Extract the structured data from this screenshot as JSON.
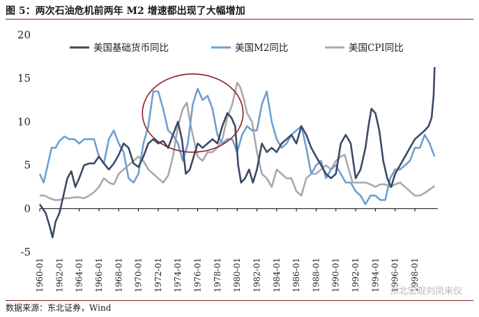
{
  "header": {
    "title": "图 5：两次石油危机前两年 M2 增速都出现了大幅增加"
  },
  "footer": {
    "source": "数据来源：东北证券，Wind"
  },
  "watermark": {
    "text": "东北宏观刘凤来仪"
  },
  "chart_data": {
    "type": "line",
    "ylim": [
      -5,
      20
    ],
    "yticks": [
      -5,
      0,
      5,
      10,
      15,
      20
    ],
    "xlim": [
      1960,
      2000.33
    ],
    "xticks": [
      "1960-01",
      "1962-01",
      "1964-01",
      "1966-01",
      "1968-01",
      "1970-01",
      "1972-01",
      "1974-01",
      "1976-01",
      "1978-01",
      "1980-01",
      "1982-01",
      "1984-01",
      "1986-01",
      "1988-01",
      "1990-01",
      "1992-01",
      "1994-01",
      "1996-01",
      "1998-01"
    ],
    "grid": false,
    "legend": "top",
    "highlight_circle": {
      "center": [
        1975.5,
        11
      ],
      "radius_x": 5.1,
      "radius_y": 4.5,
      "color": "#8b1e22"
    },
    "series": [
      {
        "name": "美国基础货币同比",
        "color": "#3b4a66",
        "points": [
          [
            1960.0,
            0.5
          ],
          [
            1960.6,
            -0.5
          ],
          [
            1961.0,
            -2.0
          ],
          [
            1961.3,
            -3.3
          ],
          [
            1961.6,
            -1.5
          ],
          [
            1962.0,
            -0.5
          ],
          [
            1962.4,
            1.5
          ],
          [
            1962.8,
            3.5
          ],
          [
            1963.2,
            4.3
          ],
          [
            1963.6,
            2.5
          ],
          [
            1964.0,
            3.5
          ],
          [
            1964.5,
            5.0
          ],
          [
            1965.0,
            5.2
          ],
          [
            1965.5,
            5.2
          ],
          [
            1966.0,
            6.0
          ],
          [
            1966.5,
            5.2
          ],
          [
            1967.0,
            4.5
          ],
          [
            1967.5,
            5.2
          ],
          [
            1968.0,
            6.2
          ],
          [
            1968.5,
            7.5
          ],
          [
            1969.0,
            7.0
          ],
          [
            1969.5,
            5.2
          ],
          [
            1970.0,
            4.8
          ],
          [
            1970.5,
            6.0
          ],
          [
            1971.0,
            7.5
          ],
          [
            1971.5,
            8.0
          ],
          [
            1972.0,
            7.5
          ],
          [
            1972.5,
            7.8
          ],
          [
            1973.0,
            7.0
          ],
          [
            1973.5,
            8.5
          ],
          [
            1974.0,
            10.0
          ],
          [
            1974.4,
            8.0
          ],
          [
            1974.8,
            4.0
          ],
          [
            1975.2,
            4.5
          ],
          [
            1975.6,
            6.0
          ],
          [
            1976.0,
            7.5
          ],
          [
            1976.5,
            7.0
          ],
          [
            1977.0,
            7.5
          ],
          [
            1977.5,
            8.0
          ],
          [
            1978.0,
            7.5
          ],
          [
            1978.5,
            9.5
          ],
          [
            1979.0,
            11.0
          ],
          [
            1979.4,
            10.5
          ],
          [
            1979.8,
            9.5
          ],
          [
            1980.1,
            5.0
          ],
          [
            1980.4,
            3.0
          ],
          [
            1980.8,
            3.5
          ],
          [
            1981.2,
            4.5
          ],
          [
            1981.6,
            3.0
          ],
          [
            1982.0,
            4.5
          ],
          [
            1982.5,
            7.5
          ],
          [
            1983.0,
            6.5
          ],
          [
            1983.5,
            7.0
          ],
          [
            1984.0,
            6.5
          ],
          [
            1984.5,
            7.5
          ],
          [
            1985.0,
            8.0
          ],
          [
            1985.5,
            8.5
          ],
          [
            1986.0,
            7.5
          ],
          [
            1986.5,
            9.5
          ],
          [
            1987.0,
            8.5
          ],
          [
            1987.5,
            7.0
          ],
          [
            1988.0,
            6.0
          ],
          [
            1988.5,
            5.0
          ],
          [
            1989.0,
            4.0
          ],
          [
            1989.5,
            3.5
          ],
          [
            1990.0,
            4.0
          ],
          [
            1990.5,
            7.5
          ],
          [
            1991.0,
            8.5
          ],
          [
            1991.5,
            7.5
          ],
          [
            1992.0,
            3.5
          ],
          [
            1992.5,
            4.5
          ],
          [
            1993.0,
            7.0
          ],
          [
            1993.3,
            9.5
          ],
          [
            1993.6,
            11.5
          ],
          [
            1994.0,
            11.0
          ],
          [
            1994.4,
            9.0
          ],
          [
            1994.8,
            5.5
          ],
          [
            1995.2,
            3.5
          ],
          [
            1995.6,
            2.5
          ],
          [
            1996.0,
            4.0
          ],
          [
            1996.5,
            5.0
          ],
          [
            1997.0,
            6.0
          ],
          [
            1997.5,
            7.0
          ],
          [
            1998.0,
            8.0
          ],
          [
            1998.5,
            8.5
          ],
          [
            1999.0,
            9.0
          ],
          [
            1999.4,
            9.5
          ],
          [
            1999.7,
            10.5
          ],
          [
            1999.9,
            13.0
          ],
          [
            2000.0,
            16.3
          ]
        ]
      },
      {
        "name": "美国M2同比",
        "color": "#6f9fd1",
        "points": [
          [
            1960.0,
            4.0
          ],
          [
            1960.4,
            3.0
          ],
          [
            1960.8,
            5.0
          ],
          [
            1961.2,
            7.0
          ],
          [
            1961.6,
            7.0
          ],
          [
            1962.0,
            7.8
          ],
          [
            1962.5,
            8.3
          ],
          [
            1963.0,
            8.0
          ],
          [
            1963.5,
            8.0
          ],
          [
            1964.0,
            7.5
          ],
          [
            1964.5,
            8.0
          ],
          [
            1965.0,
            8.0
          ],
          [
            1965.5,
            8.0
          ],
          [
            1966.0,
            6.0
          ],
          [
            1966.5,
            5.2
          ],
          [
            1967.0,
            8.0
          ],
          [
            1967.5,
            9.0
          ],
          [
            1968.0,
            7.5
          ],
          [
            1968.5,
            6.5
          ],
          [
            1969.0,
            3.5
          ],
          [
            1969.5,
            3.0
          ],
          [
            1970.0,
            4.0
          ],
          [
            1970.5,
            7.5
          ],
          [
            1971.0,
            9.5
          ],
          [
            1971.5,
            13.5
          ],
          [
            1972.0,
            13.5
          ],
          [
            1972.5,
            11.5
          ],
          [
            1973.0,
            9.0
          ],
          [
            1973.5,
            8.5
          ],
          [
            1974.0,
            7.5
          ],
          [
            1974.5,
            5.5
          ],
          [
            1975.0,
            7.5
          ],
          [
            1975.5,
            12.0
          ],
          [
            1976.0,
            13.8
          ],
          [
            1976.5,
            12.5
          ],
          [
            1977.0,
            13.0
          ],
          [
            1977.5,
            11.5
          ],
          [
            1978.0,
            8.5
          ],
          [
            1978.5,
            7.5
          ],
          [
            1979.0,
            8.0
          ],
          [
            1979.5,
            8.0
          ],
          [
            1980.0,
            6.5
          ],
          [
            1980.5,
            8.5
          ],
          [
            1981.0,
            9.5
          ],
          [
            1981.5,
            9.0
          ],
          [
            1982.0,
            9.0
          ],
          [
            1982.5,
            12.0
          ],
          [
            1983.0,
            13.5
          ],
          [
            1983.5,
            10.0
          ],
          [
            1984.0,
            8.0
          ],
          [
            1984.5,
            7.0
          ],
          [
            1985.0,
            7.5
          ],
          [
            1985.5,
            8.5
          ],
          [
            1986.0,
            9.0
          ],
          [
            1986.5,
            9.5
          ],
          [
            1987.0,
            7.0
          ],
          [
            1987.5,
            4.0
          ],
          [
            1988.0,
            5.0
          ],
          [
            1988.5,
            5.5
          ],
          [
            1989.0,
            3.5
          ],
          [
            1989.5,
            4.5
          ],
          [
            1990.0,
            5.0
          ],
          [
            1990.5,
            4.0
          ],
          [
            1991.0,
            3.0
          ],
          [
            1991.5,
            3.0
          ],
          [
            1992.0,
            2.0
          ],
          [
            1992.5,
            1.5
          ],
          [
            1993.0,
            0.5
          ],
          [
            1993.5,
            1.5
          ],
          [
            1994.0,
            1.5
          ],
          [
            1994.5,
            1.0
          ],
          [
            1995.0,
            1.0
          ],
          [
            1995.5,
            3.5
          ],
          [
            1996.0,
            4.5
          ],
          [
            1996.5,
            4.5
          ],
          [
            1997.0,
            5.0
          ],
          [
            1997.5,
            5.5
          ],
          [
            1998.0,
            7.0
          ],
          [
            1998.5,
            7.0
          ],
          [
            1999.0,
            8.5
          ],
          [
            1999.5,
            7.5
          ],
          [
            2000.0,
            6.0
          ]
        ]
      },
      {
        "name": "美国CPI同比",
        "color": "#a9a9a9",
        "points": [
          [
            1960.0,
            1.5
          ],
          [
            1960.5,
            1.5
          ],
          [
            1961.0,
            1.2
          ],
          [
            1961.5,
            1.0
          ],
          [
            1962.0,
            1.0
          ],
          [
            1962.5,
            1.2
          ],
          [
            1963.0,
            1.2
          ],
          [
            1963.5,
            1.3
          ],
          [
            1964.0,
            1.3
          ],
          [
            1964.5,
            1.2
          ],
          [
            1965.0,
            1.5
          ],
          [
            1965.5,
            1.9
          ],
          [
            1966.0,
            2.5
          ],
          [
            1966.5,
            3.5
          ],
          [
            1967.0,
            3.0
          ],
          [
            1967.5,
            2.8
          ],
          [
            1968.0,
            4.0
          ],
          [
            1968.5,
            4.5
          ],
          [
            1969.0,
            5.0
          ],
          [
            1969.5,
            5.5
          ],
          [
            1970.0,
            6.0
          ],
          [
            1970.5,
            5.5
          ],
          [
            1971.0,
            4.5
          ],
          [
            1971.5,
            4.0
          ],
          [
            1972.0,
            3.5
          ],
          [
            1972.5,
            3.0
          ],
          [
            1973.0,
            3.8
          ],
          [
            1973.5,
            6.0
          ],
          [
            1974.0,
            9.5
          ],
          [
            1974.5,
            11.5
          ],
          [
            1974.9,
            12.2
          ],
          [
            1975.3,
            9.5
          ],
          [
            1975.7,
            7.5
          ],
          [
            1976.0,
            6.0
          ],
          [
            1976.5,
            5.5
          ],
          [
            1977.0,
            6.5
          ],
          [
            1977.5,
            6.5
          ],
          [
            1978.0,
            7.0
          ],
          [
            1978.5,
            8.0
          ],
          [
            1979.0,
            10.5
          ],
          [
            1979.5,
            12.0
          ],
          [
            1980.0,
            14.5
          ],
          [
            1980.3,
            14.0
          ],
          [
            1980.7,
            12.5
          ],
          [
            1981.0,
            11.0
          ],
          [
            1981.5,
            10.0
          ],
          [
            1982.0,
            6.5
          ],
          [
            1982.5,
            4.0
          ],
          [
            1983.0,
            3.5
          ],
          [
            1983.5,
            2.5
          ],
          [
            1984.0,
            4.5
          ],
          [
            1984.5,
            4.0
          ],
          [
            1985.0,
            3.5
          ],
          [
            1985.5,
            3.5
          ],
          [
            1986.0,
            2.0
          ],
          [
            1986.5,
            1.5
          ],
          [
            1987.0,
            3.5
          ],
          [
            1987.5,
            4.0
          ],
          [
            1988.0,
            4.0
          ],
          [
            1988.5,
            4.5
          ],
          [
            1989.0,
            5.0
          ],
          [
            1989.5,
            4.5
          ],
          [
            1990.0,
            5.5
          ],
          [
            1990.5,
            6.0
          ],
          [
            1990.9,
            6.2
          ],
          [
            1991.3,
            4.5
          ],
          [
            1991.7,
            3.0
          ],
          [
            1992.0,
            3.0
          ],
          [
            1992.5,
            3.0
          ],
          [
            1993.0,
            3.0
          ],
          [
            1993.5,
            2.8
          ],
          [
            1994.0,
            2.5
          ],
          [
            1994.5,
            2.8
          ],
          [
            1995.0,
            2.8
          ],
          [
            1995.5,
            2.5
          ],
          [
            1996.0,
            2.8
          ],
          [
            1996.5,
            3.0
          ],
          [
            1997.0,
            2.5
          ],
          [
            1997.5,
            2.0
          ],
          [
            1998.0,
            1.5
          ],
          [
            1998.5,
            1.5
          ],
          [
            1999.0,
            1.8
          ],
          [
            1999.5,
            2.2
          ],
          [
            2000.0,
            2.6
          ]
        ]
      }
    ]
  }
}
